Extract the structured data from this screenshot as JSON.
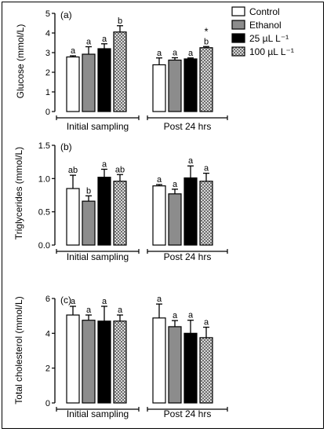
{
  "legend": {
    "items": [
      {
        "label": "Control",
        "pattern": "white"
      },
      {
        "label": "Ethanol",
        "pattern": "gray"
      },
      {
        "label": "25 µL L⁻¹",
        "pattern": "black"
      },
      {
        "label": "100 µL L⁻¹",
        "pattern": "check"
      }
    ]
  },
  "colors": {
    "control": "#ffffff",
    "ethanol": "#8c8c8c",
    "dose25": "#000000",
    "dose100": "#cfcfcf"
  },
  "chart_data": [
    {
      "panel": "(a)",
      "type": "bar",
      "ylabel": "Glucose (mmol/L)",
      "ylim": [
        0,
        5
      ],
      "yticks": [
        "0",
        "1",
        "2",
        "3",
        "4",
        "5"
      ],
      "groups": [
        "Initial sampling",
        "Post 24 hrs"
      ],
      "series": [
        {
          "name": "Control",
          "values": [
            2.78,
            2.38
          ],
          "errors": [
            0.06,
            0.35
          ],
          "letters": [
            "a",
            "a"
          ]
        },
        {
          "name": "Ethanol",
          "values": [
            2.92,
            2.62
          ],
          "errors": [
            0.38,
            0.12
          ],
          "letters": [
            "a",
            "a"
          ]
        },
        {
          "name": "25 µL L⁻¹",
          "values": [
            3.2,
            2.68
          ],
          "errors": [
            0.25,
            0.05
          ],
          "letters": [
            "a",
            "a"
          ]
        },
        {
          "name": "100 µL L⁻¹",
          "values": [
            4.05,
            3.25
          ],
          "errors": [
            0.32,
            0.06
          ],
          "letters": [
            "b",
            "b"
          ]
        }
      ],
      "annotations": [
        {
          "text": "*",
          "group": 1,
          "series": 3
        }
      ]
    },
    {
      "panel": "(b)",
      "type": "bar",
      "ylabel": "Triglycerides (mmol/L)",
      "ylim": [
        0,
        1.5
      ],
      "yticks": [
        "0.0",
        "0.5",
        "1.0",
        "1.5"
      ],
      "groups": [
        "Initial sampling",
        "Post 24 hrs"
      ],
      "series": [
        {
          "name": "Control",
          "values": [
            0.85,
            0.89
          ],
          "errors": [
            0.2,
            0.02
          ],
          "letters": [
            "ab",
            "a"
          ]
        },
        {
          "name": "Ethanol",
          "values": [
            0.66,
            0.77
          ],
          "errors": [
            0.08,
            0.07
          ],
          "letters": [
            "b",
            "a"
          ]
        },
        {
          "name": "25 µL L⁻¹",
          "values": [
            1.02,
            1.01
          ],
          "errors": [
            0.12,
            0.18
          ],
          "letters": [
            "a",
            "a"
          ]
        },
        {
          "name": "100 µL L⁻¹",
          "values": [
            0.96,
            0.96
          ],
          "errors": [
            0.1,
            0.12
          ],
          "letters": [
            "ab",
            "a"
          ]
        }
      ]
    },
    {
      "panel": "(c)",
      "type": "bar",
      "ylabel": "Total cholesterol (mmol/L)",
      "ylim": [
        0,
        6
      ],
      "yticks": [
        "0",
        "2",
        "4",
        "6"
      ],
      "groups": [
        "Initial sampling",
        "Post 24 hrs"
      ],
      "series": [
        {
          "name": "Control",
          "values": [
            5.05,
            4.88
          ],
          "errors": [
            0.5,
            0.8
          ],
          "letters": [
            "a",
            "a"
          ]
        },
        {
          "name": "Ethanol",
          "values": [
            4.75,
            4.38
          ],
          "errors": [
            0.3,
            0.35
          ],
          "letters": [
            "a",
            "a"
          ]
        },
        {
          "name": "25 µL L⁻¹",
          "values": [
            4.7,
            4.0
          ],
          "errors": [
            0.85,
            0.75
          ],
          "letters": [
            "a",
            "a"
          ]
        },
        {
          "name": "100 µL L⁻¹",
          "values": [
            4.7,
            3.75
          ],
          "errors": [
            0.35,
            0.6
          ],
          "letters": [
            "a",
            "a"
          ]
        }
      ]
    }
  ]
}
